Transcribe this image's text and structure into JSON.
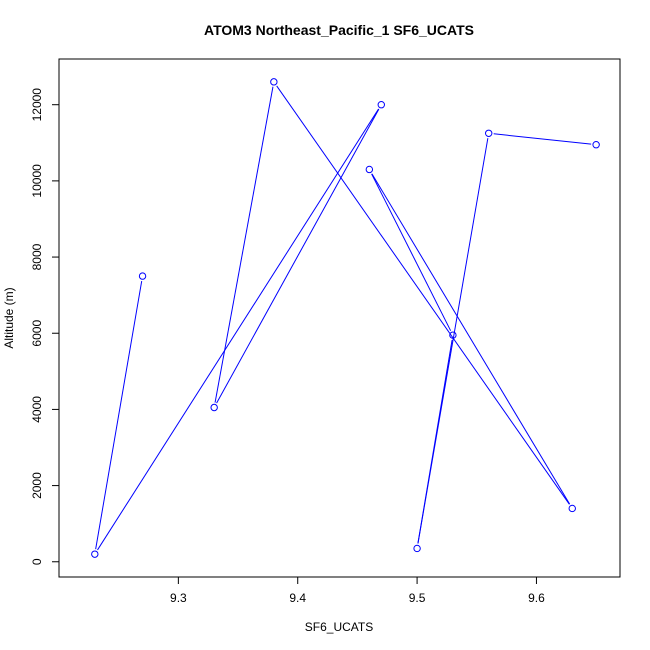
{
  "chart_data": {
    "type": "line",
    "title": "ATOM3 Northeast_Pacific_1 SF6_UCATS",
    "xlabel": "SF6_UCATS",
    "ylabel": "Altitude (m)",
    "xlim": [
      9.2,
      9.67
    ],
    "ylim": [
      -400,
      13200
    ],
    "xticks": [
      9.3,
      9.4,
      9.5,
      9.6
    ],
    "xtick_labels": [
      "9.3",
      "9.4",
      "9.5",
      "9.6"
    ],
    "yticks": [
      0,
      2000,
      4000,
      6000,
      8000,
      10000,
      12000
    ],
    "ytick_labels": [
      "0",
      "2000",
      "4000",
      "6000",
      "8000",
      "10000",
      "12000"
    ],
    "series_color": "#0000ff",
    "marker": "open-circle",
    "grid": false,
    "points": [
      {
        "x": 9.27,
        "y": 7500
      },
      {
        "x": 9.23,
        "y": 200
      },
      {
        "x": 9.47,
        "y": 12000
      },
      {
        "x": 9.33,
        "y": 4050
      },
      {
        "x": 9.38,
        "y": 12600
      },
      {
        "x": 9.63,
        "y": 1400
      },
      {
        "x": 9.46,
        "y": 10300
      },
      {
        "x": 9.53,
        "y": 5950
      },
      {
        "x": 9.5,
        "y": 350
      },
      {
        "x": 9.56,
        "y": 11250
      },
      {
        "x": 9.65,
        "y": 10950
      }
    ]
  }
}
